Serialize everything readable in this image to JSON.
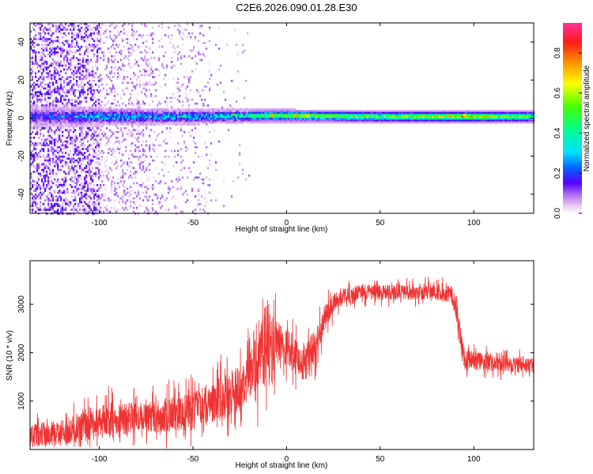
{
  "title": "C2E6.2026.090.01.28.E30",
  "chart_data": [
    {
      "type": "heatmap",
      "title": "",
      "xlabel": "Height of straight line (km)",
      "ylabel": "Frequency (Hz)",
      "xlim": [
        -137,
        132
      ],
      "ylim": [
        -50,
        50
      ],
      "x_ticks": [
        -100,
        -50,
        0,
        50,
        100
      ],
      "x_tick_labels": [
        "-100",
        "-50",
        "0",
        "50",
        "100"
      ],
      "y_ticks": [
        -40,
        -20,
        0,
        20,
        40
      ],
      "y_tick_labels": [
        "-40",
        "-20",
        "0",
        "20",
        "40"
      ],
      "colorbar": {
        "label": "Normalized spectral amplitude",
        "range": [
          0,
          0.95
        ],
        "ticks": [
          0.0,
          0.2,
          0.4,
          0.6,
          0.8
        ],
        "tick_labels": [
          "0.0",
          "0.2",
          "0.4",
          "0.6",
          "0.8"
        ],
        "colormap": "rainbow-white-purple-blue-cyan-green-yellow-orange-red-magenta"
      },
      "band": {
        "center_frequency": 1,
        "description_points": [
          {
            "x": -137,
            "center": 1,
            "halfwidth": 6,
            "amplitude": 0.15
          },
          {
            "x": -100,
            "center": 1,
            "halfwidth": 5,
            "amplitude": 0.3
          },
          {
            "x": -50,
            "center": 1,
            "halfwidth": 4,
            "amplitude": 0.35
          },
          {
            "x": -10,
            "center": 1.5,
            "halfwidth": 3.5,
            "amplitude": 0.55
          },
          {
            "x": 0,
            "center": 1.5,
            "halfwidth": 3.5,
            "amplitude": 0.6
          },
          {
            "x": 50,
            "center": 1,
            "halfwidth": 3.5,
            "amplitude": 0.55
          },
          {
            "x": 95,
            "center": 1,
            "halfwidth": 3.5,
            "amplitude": 0.75
          },
          {
            "x": 132,
            "center": 1,
            "halfwidth": 3.5,
            "amplitude": 0.5
          }
        ],
        "hotspots": [
          {
            "x": -8,
            "f": 1.5,
            "amplitude": 0.9
          },
          {
            "x": 5,
            "f": 1.5,
            "amplitude": 0.85
          },
          {
            "x": 10,
            "f": 1.5,
            "amplitude": 0.8
          },
          {
            "x": 95,
            "f": 1.5,
            "amplitude": 0.85
          }
        ]
      }
    },
    {
      "type": "line",
      "title": "",
      "xlabel": "Height of straight line (km)",
      "ylabel": "SNR (10 * v/v)",
      "xlim": [
        -137,
        132
      ],
      "ylim": [
        0,
        3900
      ],
      "x_ticks": [
        -100,
        -50,
        0,
        50,
        100
      ],
      "x_tick_labels": [
        "-100",
        "-50",
        "0",
        "50",
        "100"
      ],
      "y_ticks": [
        1000,
        2000,
        3000
      ],
      "y_tick_labels": [
        "1000",
        "2000",
        "3000"
      ],
      "color": "#ee3333",
      "series": [
        {
          "x": [
            -137,
            -120,
            -105,
            -95,
            -80,
            -65,
            -50,
            -40,
            -30,
            -25,
            -20,
            -15,
            -12,
            -10,
            -8,
            -5,
            0,
            5,
            10,
            15,
            20,
            25,
            30,
            40,
            50,
            60,
            70,
            80,
            88,
            90,
            92,
            95,
            100,
            110,
            120,
            132
          ],
          "y": [
            300,
            350,
            500,
            600,
            650,
            700,
            800,
            950,
            1150,
            1300,
            1500,
            1700,
            2100,
            2200,
            1900,
            2200,
            2150,
            1900,
            1800,
            2100,
            2700,
            3000,
            3150,
            3250,
            3250,
            3250,
            3250,
            3250,
            3200,
            3000,
            2500,
            1850,
            1850,
            1800,
            1750,
            1750
          ],
          "noise": [
            300,
            320,
            400,
            450,
            400,
            450,
            500,
            550,
            600,
            650,
            700,
            800,
            1000,
            1200,
            1000,
            600,
            500,
            500,
            500,
            450,
            350,
            250,
            220,
            200,
            200,
            200,
            200,
            200,
            220,
            300,
            400,
            300,
            250,
            220,
            220,
            220
          ]
        }
      ]
    }
  ]
}
